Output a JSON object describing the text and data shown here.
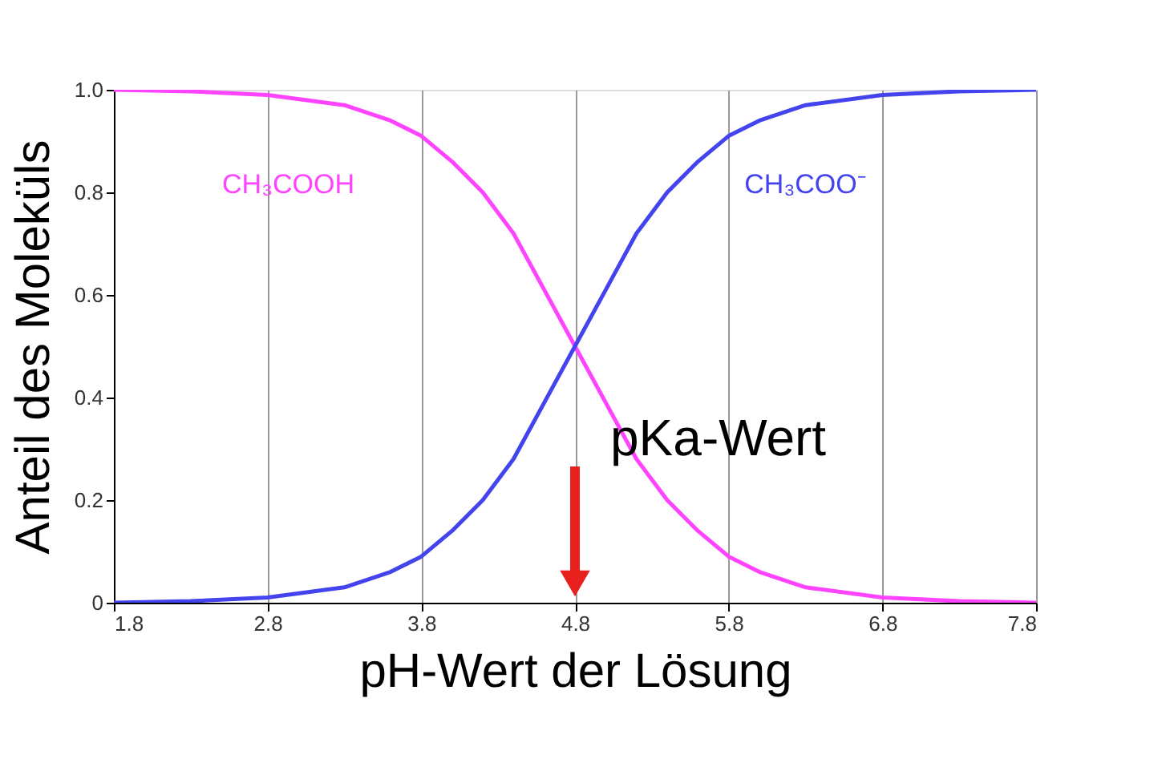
{
  "chart_data": {
    "type": "line",
    "xlabel": "pH-Wert der Lösung",
    "ylabel": "Anteil des Moleküls",
    "x": [
      1.8,
      2.3,
      2.8,
      3.3,
      3.6,
      3.8,
      4.0,
      4.2,
      4.4,
      4.6,
      4.8,
      5.0,
      5.2,
      5.4,
      5.6,
      5.8,
      6.0,
      6.3,
      6.8,
      7.3,
      7.8
    ],
    "series": [
      {
        "name": "CH₃COOH",
        "color": "#ff44ff",
        "values": [
          1.0,
          0.997,
          0.99,
          0.97,
          0.94,
          0.91,
          0.86,
          0.8,
          0.72,
          0.61,
          0.5,
          0.39,
          0.28,
          0.2,
          0.14,
          0.09,
          0.06,
          0.03,
          0.01,
          0.003,
          0.0
        ]
      },
      {
        "name": "CH₃COO⁻",
        "color": "#4444ee",
        "values": [
          0.0,
          0.003,
          0.01,
          0.03,
          0.06,
          0.09,
          0.14,
          0.2,
          0.28,
          0.39,
          0.5,
          0.61,
          0.72,
          0.8,
          0.86,
          0.91,
          0.94,
          0.97,
          0.99,
          0.997,
          1.0
        ]
      }
    ],
    "xlim": [
      1.8,
      7.8
    ],
    "xticks": [
      1.8,
      2.8,
      3.8,
      4.8,
      5.8,
      6.8,
      7.8
    ],
    "ylim": [
      0,
      1.0
    ],
    "yticks": [
      {
        "value": 0,
        "label": "0"
      },
      {
        "value": 0.2,
        "label": "0.2"
      },
      {
        "value": 0.4,
        "label": "0.4"
      },
      {
        "value": 0.6,
        "label": "0.6"
      },
      {
        "value": 0.8,
        "label": "0.8"
      },
      {
        "value": 1.0,
        "label": "1.0"
      }
    ],
    "grid": "x",
    "legend": false,
    "marker": "none",
    "line_style": "solid",
    "ref_lines": [
      {
        "axis": "x",
        "value": 4.8,
        "label": "pKa-Wert",
        "color": "#e8211f"
      }
    ]
  }
}
